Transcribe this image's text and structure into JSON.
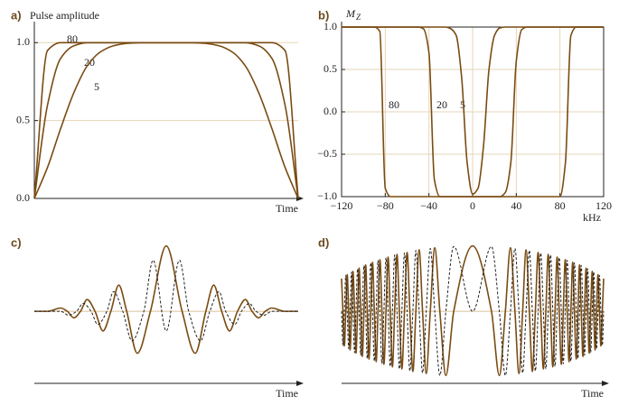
{
  "chart_data": [
    {
      "type": "line",
      "panel": "a)",
      "title": "Pulse amplitude",
      "xlabel": "Time",
      "x": [
        0,
        0.05,
        0.1,
        0.15,
        0.2,
        0.25,
        0.3,
        0.35,
        0.4,
        0.45,
        0.5,
        0.55,
        0.6,
        0.65,
        0.7,
        0.75,
        0.8,
        0.85,
        0.9,
        0.95,
        1
      ],
      "xlim": [
        0,
        1
      ],
      "ylim": [
        0,
        1.1
      ],
      "yticks": [
        {
          "value": 0,
          "label": "0.0"
        },
        0.5,
        {
          "value": 1,
          "label": "1.0"
        }
      ],
      "grid": true,
      "annotations": [
        "80",
        "20",
        "5"
      ],
      "series": [
        {
          "name": "80",
          "color": "#7a4b12",
          "values": [
            0,
            0.95,
            1,
            1,
            1,
            1,
            1,
            1,
            1,
            1,
            1,
            1,
            1,
            1,
            1,
            1,
            1,
            1,
            1,
            0.95,
            0
          ]
        },
        {
          "name": "20",
          "color": "#7a4b12",
          "values": [
            0,
            0.6,
            0.9,
            0.98,
            1,
            1,
            1,
            1,
            1,
            1,
            1,
            1,
            1,
            1,
            1,
            1,
            1,
            0.98,
            0.9,
            0.6,
            0
          ]
        },
        {
          "name": "5",
          "color": "#7a4b12",
          "values": [
            0,
            0.2,
            0.45,
            0.68,
            0.85,
            0.94,
            0.98,
            0.995,
            1,
            1,
            1,
            1,
            1,
            0.995,
            0.98,
            0.94,
            0.85,
            0.68,
            0.45,
            0.2,
            0
          ]
        }
      ]
    },
    {
      "type": "line",
      "panel": "b)",
      "ylabel": "M",
      "ylabel_sub": "Z",
      "xlabel": "kHz",
      "x": [
        -120,
        -115,
        -110,
        -105,
        -100,
        -95,
        -90,
        -85,
        -80,
        -75,
        -70,
        -65,
        -60,
        -55,
        -50,
        -45,
        -40,
        -35,
        -30,
        -25,
        -20,
        -15,
        -10,
        -5,
        0,
        5,
        10,
        15,
        20,
        25,
        30,
        35,
        40,
        45,
        50,
        55,
        60,
        65,
        70,
        75,
        80,
        85,
        90,
        95,
        100,
        105,
        110,
        115,
        120
      ],
      "xlim": [
        -120,
        120
      ],
      "xticks": [
        {
          "value": -120,
          "label": "−120"
        },
        {
          "value": -80,
          "label": "−80"
        },
        {
          "value": -40,
          "label": "−40"
        },
        0,
        40,
        80,
        120
      ],
      "ylim": [
        -1,
        1
      ],
      "yticks": [
        {
          "value": -1,
          "label": "−1.0"
        },
        {
          "value": -0.5,
          "label": "−0.5"
        },
        {
          "value": 0,
          "label": "0.0"
        },
        0.5,
        {
          "value": 1,
          "label": "1.0"
        }
      ],
      "grid": true,
      "annotations": [
        "80",
        "20",
        "5"
      ],
      "series": [
        {
          "name": "80",
          "color": "#7a4b12",
          "values": [
            1,
            1,
            1,
            1,
            1,
            1,
            1,
            0.95,
            -0.9,
            -1,
            -1,
            -1,
            -1,
            -1,
            -1,
            -1,
            -1,
            -1,
            -1,
            -1,
            -1,
            -1,
            -1,
            -1,
            -1,
            -1,
            -1,
            -1,
            -1,
            -1,
            -1,
            -1,
            -1,
            -1,
            -1,
            -1,
            -1,
            -1,
            -1,
            -1,
            -1,
            -0.6,
            0.9,
            1,
            1,
            1,
            1,
            1,
            1
          ]
        },
        {
          "name": "20",
          "color": "#7a4b12",
          "values": [
            1,
            1,
            1,
            1,
            1,
            1,
            1,
            1,
            1,
            1,
            1,
            1,
            1,
            1,
            1,
            0.98,
            0.7,
            -0.8,
            -1,
            -1,
            -1,
            -1,
            -1,
            -1,
            -1,
            -1,
            -1,
            -1,
            -1,
            -1,
            -0.95,
            -0.6,
            0.6,
            0.97,
            1,
            1,
            1,
            1,
            1,
            1,
            1,
            1,
            1,
            1,
            1,
            1,
            1,
            1,
            1
          ]
        },
        {
          "name": "5",
          "color": "#7a4b12",
          "values": [
            1,
            1,
            1,
            1,
            1,
            1,
            1,
            1,
            1,
            1,
            1,
            1,
            1,
            1,
            1,
            1,
            1,
            1,
            1,
            1,
            0.98,
            0.9,
            0.4,
            -0.6,
            -0.97,
            -0.9,
            -0.4,
            0.5,
            0.9,
            0.99,
            1,
            1,
            1,
            1,
            1,
            1,
            1,
            1,
            1,
            1,
            1,
            1,
            1,
            1,
            1,
            1,
            1,
            1,
            1
          ]
        }
      ]
    },
    {
      "type": "line",
      "panel": "c)",
      "xlabel": "Time",
      "xlim": [
        -1,
        1
      ],
      "ylim": [
        -1.1,
        1.2
      ],
      "series": [
        {
          "color": "#7a4b12",
          "style": "solid",
          "x": [
            -1,
            -0.9,
            -0.8,
            -0.75,
            -0.7,
            -0.65,
            -0.6,
            -0.54,
            -0.48,
            -0.42,
            -0.36,
            -0.3,
            -0.22,
            -0.12,
            0,
            0.12,
            0.22,
            0.3,
            0.36,
            0.42,
            0.48,
            0.54,
            0.6,
            0.65,
            0.7,
            0.75,
            0.8,
            0.9,
            1
          ],
          "values": [
            0,
            0,
            0.05,
            0,
            -0.1,
            0,
            0.18,
            0,
            -0.3,
            0,
            0.4,
            0,
            -0.64,
            0,
            1,
            0,
            -0.64,
            0,
            0.4,
            0,
            -0.3,
            0,
            0.18,
            0,
            -0.1,
            0,
            0.05,
            0,
            0
          ]
        },
        {
          "color": "#222222",
          "style": "dashed",
          "x": [
            -1,
            -0.8,
            -0.74,
            -0.68,
            -0.63,
            -0.57,
            -0.52,
            -0.45,
            -0.4,
            -0.33,
            -0.26,
            -0.17,
            -0.1,
            0,
            0.1,
            0.17,
            0.26,
            0.33,
            0.4,
            0.45,
            0.52,
            0.57,
            0.63,
            0.68,
            0.74,
            0.8,
            1
          ],
          "values": [
            0,
            0,
            -0.06,
            0,
            0.12,
            0,
            -0.2,
            0,
            0.3,
            0,
            -0.45,
            0,
            0.78,
            -0.3,
            0.78,
            0,
            -0.45,
            0,
            0.3,
            0,
            -0.2,
            0,
            0.12,
            0,
            -0.06,
            0,
            0
          ]
        }
      ]
    },
    {
      "type": "line",
      "panel": "d)",
      "xlabel": "Time",
      "xlim": [
        -1,
        1
      ],
      "ylim": [
        -1.1,
        1.2
      ],
      "x": [
        -1,
        -0.99,
        -0.979,
        -0.968,
        -0.957,
        -0.946,
        -0.935,
        -0.924,
        -0.913,
        -0.901,
        -0.89,
        -0.878,
        -0.866,
        -0.854,
        -0.842,
        -0.829,
        -0.816,
        -0.804,
        -0.791,
        -0.777,
        -0.764,
        -0.75,
        -0.736,
        -0.722,
        -0.707,
        -0.692,
        -0.677,
        -0.661,
        -0.645,
        -0.629,
        -0.612,
        -0.595,
        -0.577,
        -0.559,
        -0.54,
        -0.52,
        -0.5,
        -0.479,
        -0.456,
        -0.433,
        -0.408,
        -0.382,
        -0.354,
        -0.323,
        -0.289,
        -0.25,
        -0.204,
        -0.144,
        0,
        0.144,
        0.204,
        0.25,
        0.289,
        0.323,
        0.354,
        0.382,
        0.408,
        0.433,
        0.456,
        0.479,
        0.5,
        0.52,
        0.54,
        0.559,
        0.577,
        0.595,
        0.612,
        0.629,
        0.645,
        0.661,
        0.677,
        0.692,
        0.707,
        0.722,
        0.736,
        0.75,
        0.764,
        0.777,
        0.791,
        0.804,
        0.816,
        0.829,
        0.842,
        0.854,
        0.866,
        0.878,
        0.89,
        0.901,
        0.913,
        0.924,
        0.935,
        0.946,
        0.957,
        0.968,
        0.979,
        0.99,
        1
      ],
      "series": [
        {
          "color": "#7a4b12",
          "style": "solid",
          "values": [
            0.5,
            0,
            -0.53,
            0,
            0.56,
            0,
            -0.59,
            0,
            0.61,
            0,
            -0.64,
            0,
            0.66,
            0,
            -0.69,
            0,
            0.71,
            0,
            -0.73,
            0,
            0.75,
            0,
            -0.77,
            0,
            0.79,
            0,
            -0.81,
            0,
            0.83,
            0,
            -0.85,
            0,
            0.87,
            0,
            -0.88,
            0,
            0.9,
            0,
            -0.92,
            0,
            0.94,
            0,
            -0.95,
            0,
            0.97,
            0,
            -0.98,
            0,
            1,
            0,
            -0.98,
            0,
            0.97,
            0,
            -0.95,
            0,
            0.94,
            0,
            -0.92,
            0,
            0.9,
            0,
            -0.88,
            0,
            0.87,
            0,
            -0.85,
            0,
            0.83,
            0,
            -0.81,
            0,
            0.79,
            0,
            -0.77,
            0,
            0.75,
            0,
            -0.73,
            0,
            0.71,
            0,
            -0.69,
            0,
            0.66,
            0,
            -0.64,
            0,
            0.61,
            0,
            -0.59,
            0,
            0.56,
            0,
            -0.53,
            0,
            0.5
          ]
        },
        {
          "color": "#222222",
          "style": "dashed",
          "values": [
            0,
            -0.52,
            0,
            0.55,
            0,
            -0.57,
            0,
            0.6,
            0,
            -0.63,
            0,
            0.65,
            0,
            -0.67,
            0,
            0.7,
            0,
            -0.72,
            0,
            0.74,
            0,
            -0.76,
            0,
            0.78,
            0,
            -0.8,
            0,
            0.82,
            0,
            -0.84,
            0,
            0.86,
            0,
            -0.88,
            0,
            0.89,
            0,
            -0.91,
            0,
            0.93,
            0,
            -0.94,
            0,
            0.96,
            0,
            -0.98,
            0,
            0.99,
            0,
            0.99,
            0,
            -0.98,
            0,
            0.96,
            0,
            -0.94,
            0,
            0.93,
            0,
            -0.91,
            0,
            0.89,
            0,
            -0.88,
            0,
            0.86,
            0,
            -0.84,
            0,
            0.82,
            0,
            -0.8,
            0,
            0.78,
            0,
            -0.76,
            0,
            0.74,
            0,
            -0.72,
            0,
            0.7,
            0,
            -0.67,
            0,
            0.65,
            0,
            -0.63,
            0,
            0.6,
            0,
            -0.57,
            0,
            0.55,
            0,
            -0.52,
            0
          ]
        }
      ]
    }
  ]
}
